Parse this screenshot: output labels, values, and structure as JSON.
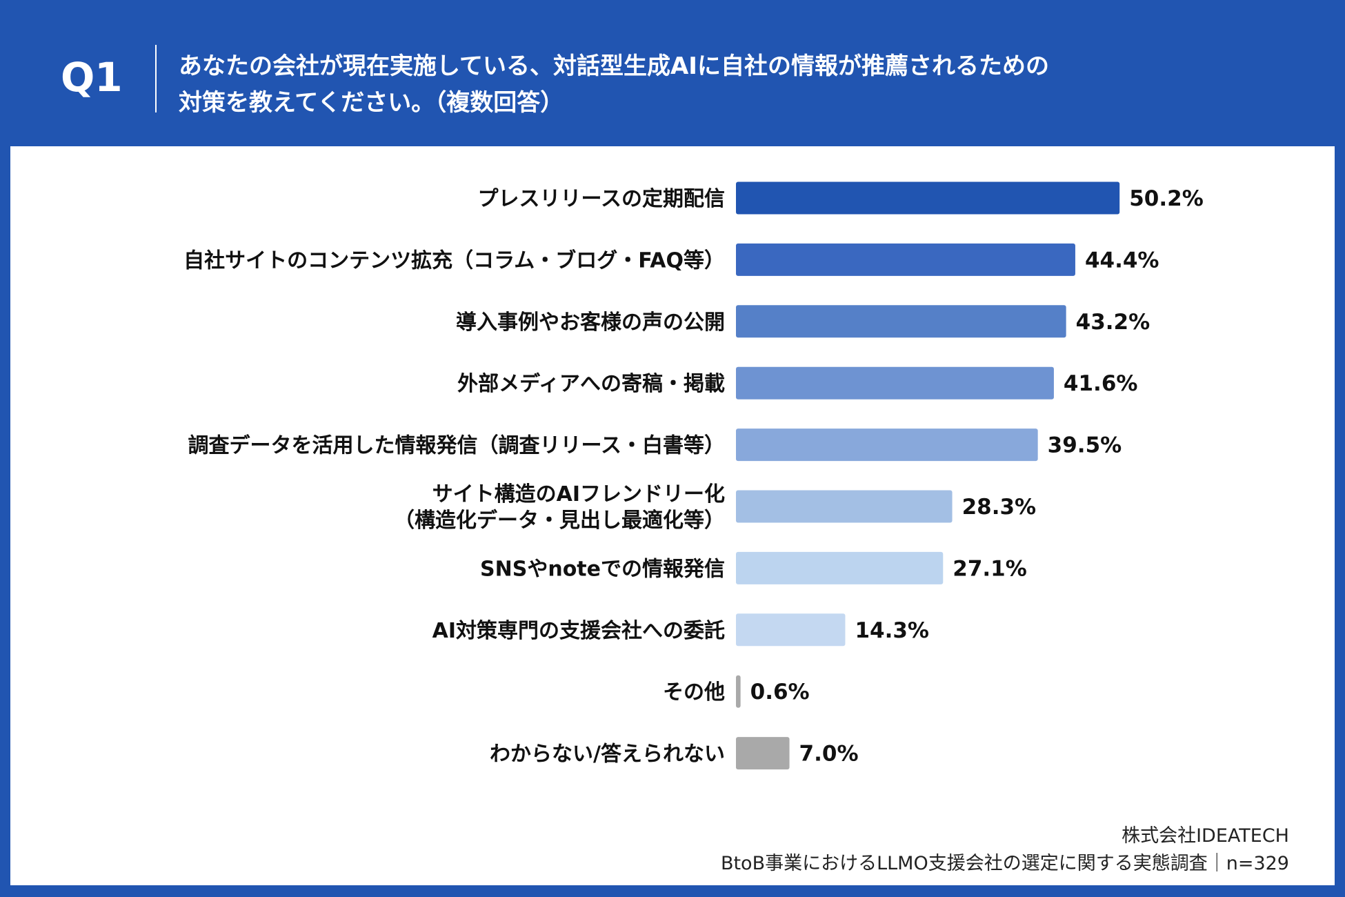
{
  "header": {
    "question_no": "Q1",
    "title": "あなたの会社が現在実施している、対話型生成AIに自社の情報が推薦されるための\n対策を教えてください。（複数回答）"
  },
  "chart_data": {
    "type": "bar",
    "orientation": "horizontal",
    "categories": [
      "プレスリリースの定期配信",
      "自社サイトのコンテンツ拡充（コラム・ブログ・FAQ等）",
      "導入事例やお客様の声の公開",
      "外部メディアへの寄稿・掲載",
      "調査データを活用した情報発信（調査リリース・白書等）",
      "サイト構造のAIフレンドリー化\n（構造化データ・見出し最適化等）",
      "SNSやnoteでの情報発信",
      "AI対策専門の支援会社への委託",
      "その他",
      "わからない/答えられない"
    ],
    "values": [
      50.2,
      44.4,
      43.2,
      41.6,
      39.5,
      28.3,
      27.1,
      14.3,
      0.6,
      7.0
    ],
    "value_labels": [
      "50.2%",
      "44.4%",
      "43.2%",
      "41.6%",
      "39.5%",
      "28.3%",
      "27.1%",
      "14.3%",
      "0.6%",
      "7.0%"
    ],
    "colors": [
      "#2155b1",
      "#3a68c0",
      "#5580c8",
      "#6e93d2",
      "#88a8db",
      "#a3bfe4",
      "#bcd4ef",
      "#c4d8f1",
      "#a9a9a9",
      "#a9a9a9"
    ],
    "unit": "%",
    "grid": false
  },
  "footer": {
    "company": "株式会社IDEATECH",
    "survey": "BtoB事業におけるLLMO支援会社の選定に関する実態調査｜n=329"
  }
}
